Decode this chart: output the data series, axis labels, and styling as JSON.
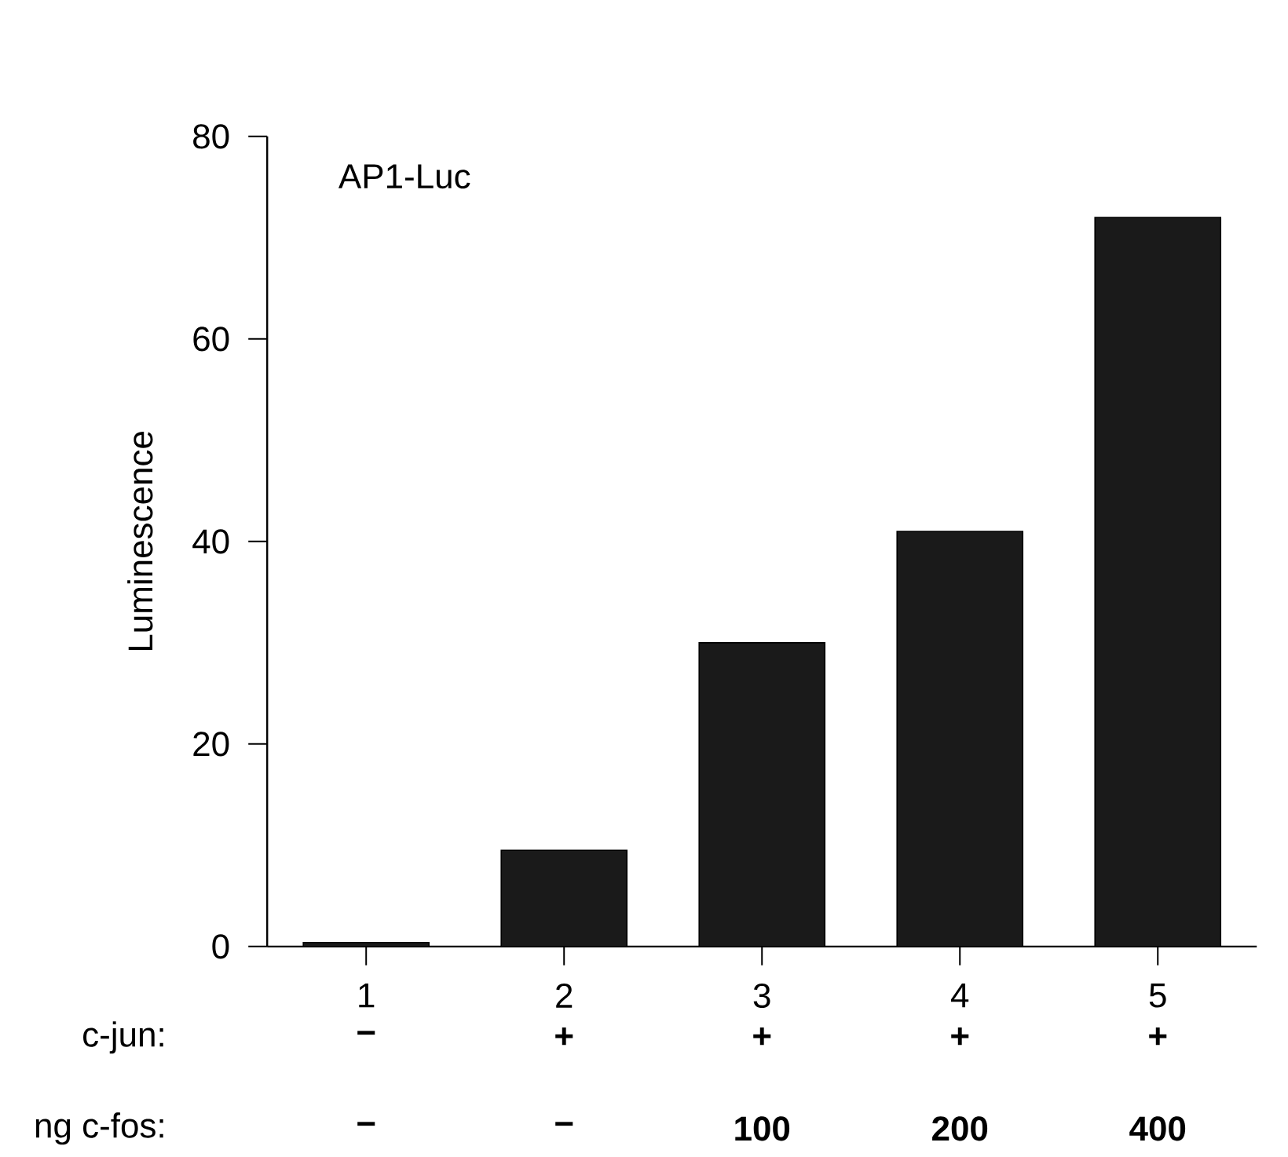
{
  "chart_data": {
    "type": "bar",
    "title": "AP1-Luc",
    "ylabel": "Luminescence",
    "categories": [
      "1",
      "2",
      "3",
      "4",
      "5"
    ],
    "values": [
      0.4,
      9.5,
      30,
      41,
      72
    ],
    "color": "#1a1a1a",
    "ylim": [
      0,
      80
    ],
    "yticks": [
      0,
      20,
      40,
      60,
      80
    ],
    "annotations": [
      "c-jun:",
      "−",
      "+",
      "+",
      "+",
      "+",
      "ng c-fos:",
      "−",
      "−",
      "100",
      "200",
      "400"
    ]
  }
}
